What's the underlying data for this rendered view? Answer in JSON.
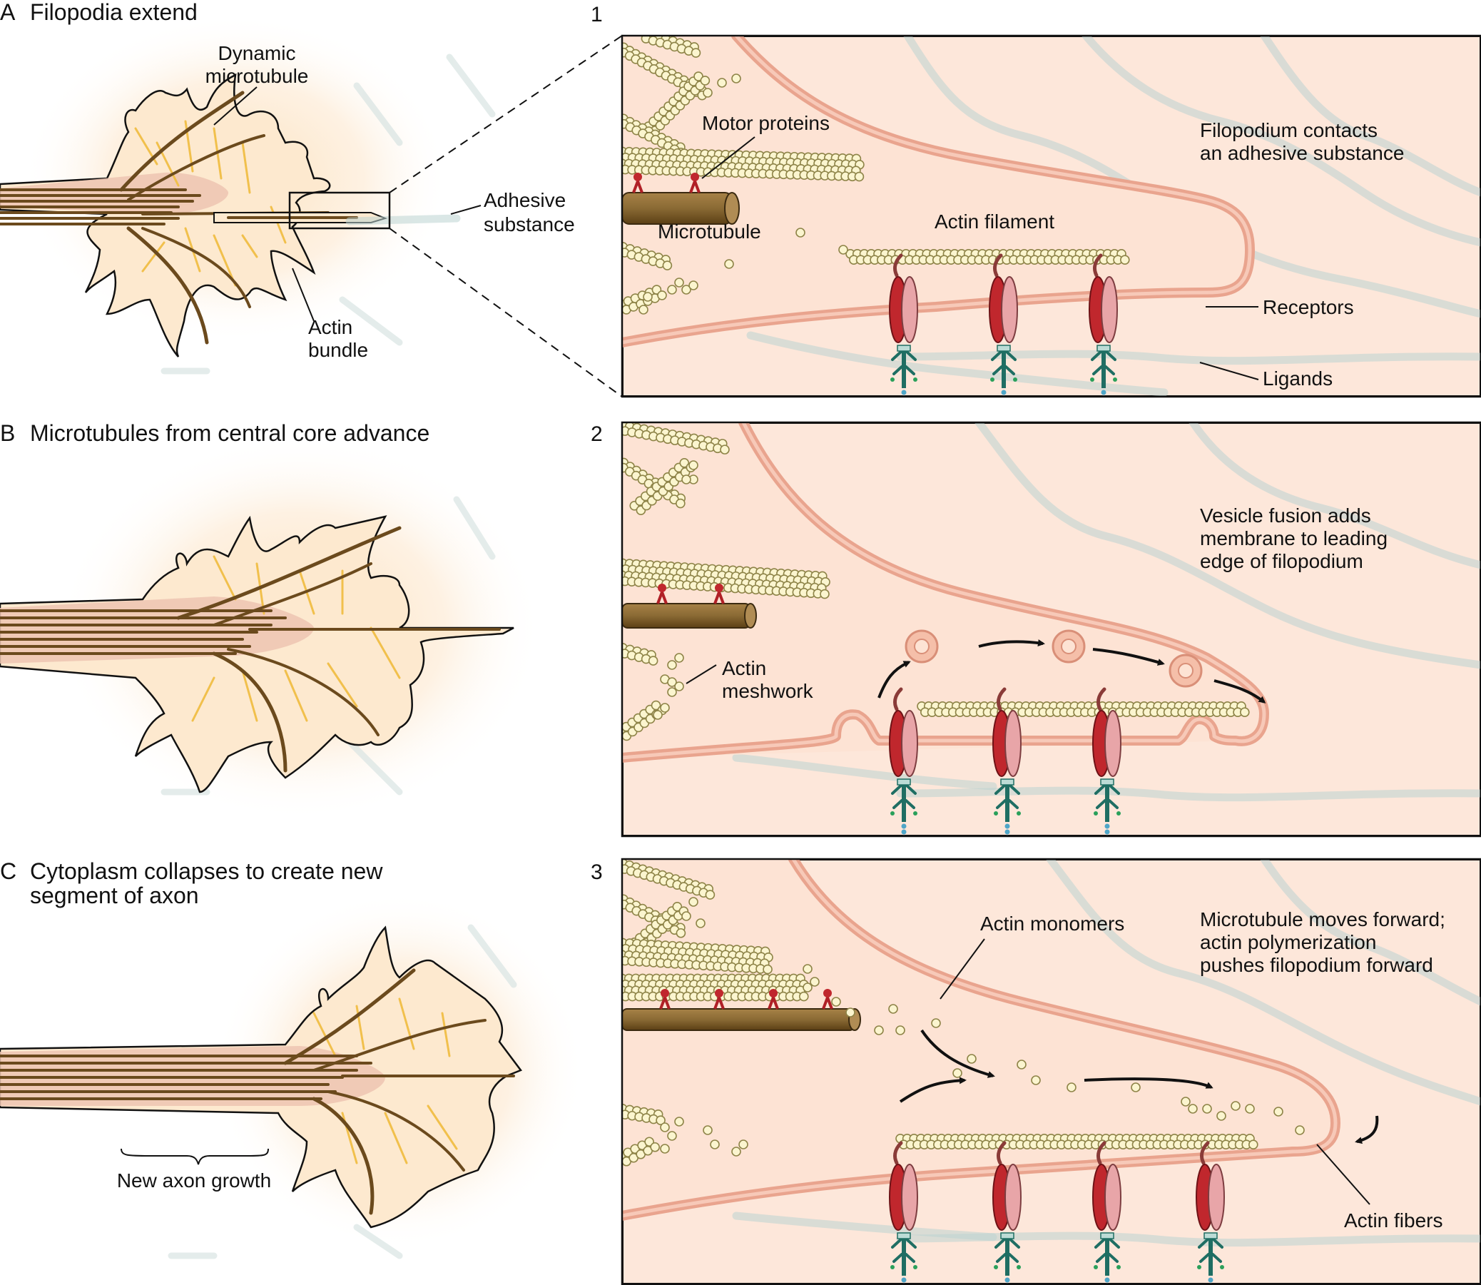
{
  "panels": [
    {
      "letter": "A",
      "title": "Filopodia extend"
    },
    {
      "letter": "B",
      "title": "Microtubules from central core advance"
    },
    {
      "letter": "C",
      "title_line1": "Cytoplasm collapses to create new",
      "title_line2": "segment of axon"
    }
  ],
  "panel_numbers": [
    "1",
    "2",
    "3"
  ],
  "labels_a": {
    "dynamic_line1": "Dynamic",
    "dynamic_line2": "microtubule",
    "adhesive_line1": "Adhesive",
    "adhesive_line2": "substance",
    "actin_bundle_line1": "Actin",
    "actin_bundle_line2": "bundle"
  },
  "labels_1": {
    "motor_proteins": "Motor proteins",
    "microtubule": "Microtubule",
    "actin_filament": "Actin filament",
    "caption_line1": "Filopodium contacts",
    "caption_line2": "an adhesive substance",
    "receptors": "Receptors",
    "ligands": "Ligands"
  },
  "labels_2": {
    "caption_line1": "Vesicle fusion adds",
    "caption_line2": "membrane to leading",
    "caption_line3": "edge of filopodium",
    "meshwork_line1": "Actin",
    "meshwork_line2": "meshwork"
  },
  "labels_3": {
    "actin_monomers": "Actin monomers",
    "caption_line1": "Microtubule moves forward;",
    "caption_line2": "actin polymerization",
    "caption_line3": "pushes filopodium forward",
    "actin_fibers": "Actin fibers"
  },
  "labels_c": {
    "new_axon_growth": "New axon growth"
  },
  "colors": {
    "cytoplasm": "#fde7da",
    "membrane": "#e9a48e",
    "actin_bead": "#fbf5cf",
    "microtubule": "#8a6a34",
    "receptor_dark": "#c0272d",
    "receptor_light": "#e8a5a8",
    "ligand": "#1f6e63",
    "ecm_fiber": "#bcd3d2"
  }
}
